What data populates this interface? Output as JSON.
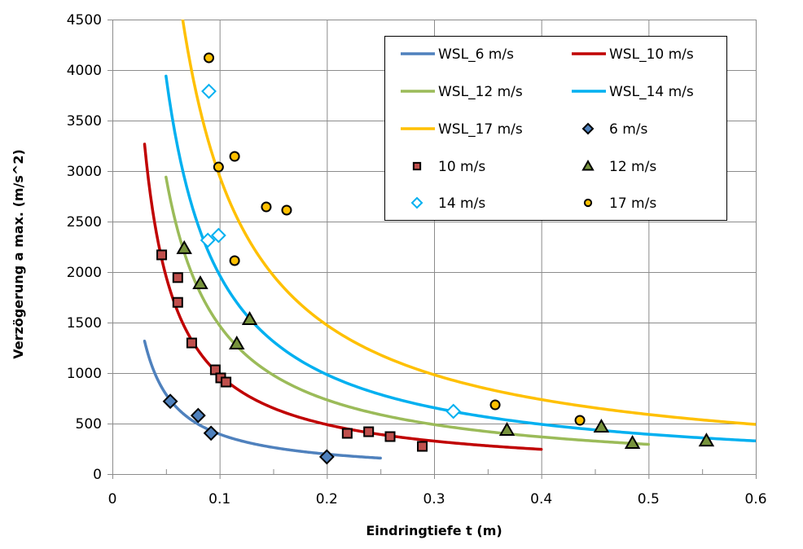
{
  "chart_data": {
    "type": "line+scatter",
    "xlabel": "Eindringtiefe t (m)",
    "ylabel": "Verzögerung  a max. (m/s^2)",
    "xlim": [
      0,
      0.6
    ],
    "ylim": [
      0,
      4500
    ],
    "x_ticks": [
      "0",
      "0.1",
      "0.2",
      "0.3",
      "0.4",
      "0.5",
      "0.6"
    ],
    "x_tick_values": [
      0,
      0.1,
      0.2,
      0.3,
      0.4,
      0.5,
      0.6
    ],
    "y_ticks": [
      "0",
      "500",
      "1000",
      "1500",
      "2000",
      "2500",
      "3000",
      "3500",
      "4000",
      "4500"
    ],
    "y_tick_values": [
      0,
      500,
      1000,
      1500,
      2000,
      2500,
      3000,
      3500,
      4000,
      4500
    ],
    "grid": true,
    "legend_position": "top-right",
    "line_series": [
      {
        "name": "WSL_6 m/s",
        "color": "#4F81BD",
        "k": 39.5,
        "t_range": [
          0.03,
          0.25
        ]
      },
      {
        "name": "WSL_10 m/s",
        "color": "#C00000",
        "k": 98,
        "t_range": [
          0.03,
          0.4
        ]
      },
      {
        "name": "WSL_12 m/s",
        "color": "#9BBB59",
        "k": 147,
        "t_range": [
          0.05,
          0.5
        ]
      },
      {
        "name": "WSL_14 m/s",
        "color": "#00B0F0",
        "k": 197,
        "t_range": [
          0.05,
          0.6
        ]
      },
      {
        "name": "WSL_17 m/s",
        "color": "#FFC000",
        "k": 295,
        "t_range": [
          0.065,
          0.6
        ]
      }
    ],
    "scatter_series": [
      {
        "name": "6 m/s",
        "marker": "diamond",
        "fill": "#4F81BD",
        "stroke": "#000000",
        "points": [
          [
            0.054,
            720
          ],
          [
            0.08,
            580
          ],
          [
            0.092,
            405
          ],
          [
            0.2,
            170
          ]
        ]
      },
      {
        "name": "10 m/s",
        "marker": "square",
        "fill": "#C0504D",
        "stroke": "#000000",
        "points": [
          [
            0.046,
            2170
          ],
          [
            0.061,
            1945
          ],
          [
            0.061,
            1700
          ],
          [
            0.074,
            1298
          ],
          [
            0.096,
            1032
          ],
          [
            0.101,
            952
          ],
          [
            0.106,
            911
          ],
          [
            0.219,
            403
          ],
          [
            0.239,
            419
          ],
          [
            0.259,
            371
          ],
          [
            0.289,
            274
          ]
        ]
      },
      {
        "name": "12 m/s",
        "marker": "triangle",
        "fill": "#77933C",
        "stroke": "#000000",
        "points": [
          [
            0.067,
            2235
          ],
          [
            0.082,
            1887
          ],
          [
            0.128,
            1532
          ],
          [
            0.116,
            1290
          ],
          [
            0.368,
            435
          ],
          [
            0.456,
            468
          ],
          [
            0.485,
            306
          ],
          [
            0.554,
            330
          ]
        ]
      },
      {
        "name": "14 m/s",
        "marker": "diamond-open",
        "fill": "#FFFFFF",
        "stroke": "#00B0F0",
        "points": [
          [
            0.09,
            3790
          ],
          [
            0.089,
            2315
          ],
          [
            0.099,
            2363
          ],
          [
            0.318,
            621
          ]
        ]
      },
      {
        "name": "17 m/s",
        "marker": "circle",
        "fill": "#FFC000",
        "stroke": "#000000",
        "points": [
          [
            0.09,
            4121
          ],
          [
            0.099,
            3040
          ],
          [
            0.114,
            3145
          ],
          [
            0.1435,
            2645
          ],
          [
            0.1625,
            2613
          ],
          [
            0.114,
            2113
          ],
          [
            0.357,
            685
          ],
          [
            0.436,
            532
          ]
        ]
      }
    ],
    "legend_order": [
      "WSL_6 m/s",
      "WSL_10 m/s",
      "WSL_12 m/s",
      "WSL_14 m/s",
      "WSL_17 m/s",
      "6 m/s",
      "10 m/s",
      "12 m/s",
      "14 m/s",
      "17 m/s"
    ]
  }
}
